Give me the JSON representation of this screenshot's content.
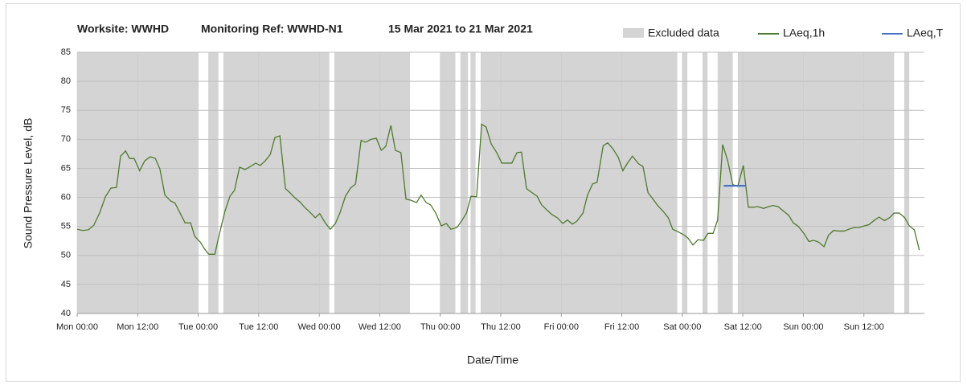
{
  "chart_data": {
    "type": "line",
    "title_parts": [
      "Worksite: WWHD",
      "Monitoring Ref: WWHD-N1",
      "15 Mar 2021 to 21 Mar 2021"
    ],
    "xlabel": "Date/Time",
    "ylabel": "Sound Pressure Level, dB",
    "xlim": [
      0,
      168
    ],
    "ylim": [
      40,
      85
    ],
    "yticks": [
      40,
      45,
      50,
      55,
      60,
      65,
      70,
      75,
      80,
      85
    ],
    "xticks": [
      {
        "value": 0,
        "label": "Mon 00:00"
      },
      {
        "value": 12,
        "label": "Mon 12:00"
      },
      {
        "value": 24,
        "label": "Tue 00:00"
      },
      {
        "value": 36,
        "label": "Tue 12:00"
      },
      {
        "value": 48,
        "label": "Wed 00:00"
      },
      {
        "value": 60,
        "label": "Wed 12:00"
      },
      {
        "value": 72,
        "label": "Thu 00:00"
      },
      {
        "value": 84,
        "label": "Thu 12:00"
      },
      {
        "value": 96,
        "label": "Fri 00:00"
      },
      {
        "value": 108,
        "label": "Fri 12:00"
      },
      {
        "value": 120,
        "label": "Sat 00:00"
      },
      {
        "value": 132,
        "label": "Sat 12:00"
      },
      {
        "value": 144,
        "label": "Sun 00:00"
      },
      {
        "value": 156,
        "label": "Sun 12:00"
      }
    ],
    "grid": true,
    "legend": "top-right",
    "excluded": {
      "name": "Excluded data",
      "color": "#d4d4d4",
      "ranges": [
        [
          0,
          24
        ],
        [
          26,
          28
        ],
        [
          29,
          50
        ],
        [
          51,
          66
        ],
        [
          72,
          75
        ],
        [
          76,
          77.5
        ],
        [
          78,
          79
        ],
        [
          80,
          119
        ],
        [
          120,
          121
        ],
        [
          124,
          125
        ],
        [
          127,
          130
        ],
        [
          131,
          162
        ],
        [
          164,
          165
        ]
      ]
    },
    "series": [
      {
        "name": "LAeq,1h",
        "color": "#4e7a2e",
        "x": [
          0,
          1.1,
          2.2,
          3.3,
          4.5,
          5.6,
          6.7,
          7.8,
          8.6,
          9.6,
          10.4,
          11.3,
          12.4,
          13.4,
          14.5,
          15.5,
          16.4,
          17.4,
          18.5,
          19.4,
          20.4,
          21.4,
          22.5,
          23.3,
          24.4,
          25.2,
          26.1,
          27.3,
          28.2,
          29.3,
          30.3,
          31.2,
          32.2,
          33.3,
          34.3,
          35.4,
          36.3,
          37.3,
          38.3,
          39.2,
          40.2,
          41.3,
          42.2,
          43.2,
          44.2,
          45.1,
          46.2,
          47.2,
          48.1,
          49.2,
          50.2,
          51.2,
          52.1,
          53.2,
          54.2,
          55.2,
          56.3,
          57.2,
          58.3,
          59.3,
          60.3,
          61.2,
          62.2,
          63.1,
          64.2,
          65.2,
          66.2,
          67.3,
          68.2,
          69.2,
          70.1,
          71.1,
          72.2,
          73.2,
          74.1,
          75.3,
          76.2,
          77.2,
          78.1,
          79.2,
          80.2,
          81.1,
          82.1,
          83.2,
          84.2,
          85.1,
          86.2,
          87.2,
          88.1,
          89.1,
          90.2,
          91.2,
          92.1,
          93.3,
          94.2,
          95.2,
          96.3,
          97.2,
          98.2,
          99.1,
          100.3,
          101.2,
          102.2,
          103.1,
          104.3,
          105.2,
          106.2,
          107.3,
          108.2,
          109.2,
          110.1,
          111.3,
          112.2,
          113.2,
          114.1,
          115.1,
          116.2,
          117.2,
          118.1,
          119.1,
          120.2,
          121.1,
          122.1,
          123.1,
          124.2,
          125.1,
          126.1,
          127,
          128,
          129,
          130,
          131,
          132.1,
          133.1,
          134.1,
          135,
          136.1,
          137.1,
          138,
          139,
          140.1,
          141.1,
          142,
          143,
          144.1,
          145.1,
          146,
          147,
          148.1,
          149,
          150,
          151,
          152.1,
          153,
          154,
          155,
          156.1,
          157,
          158,
          159,
          160.1,
          161.1,
          162,
          163,
          164.1,
          165,
          166,
          167
        ],
        "values": [
          54.5,
          54.3,
          54.4,
          55.2,
          57.4,
          60.1,
          61.6,
          61.7,
          67.1,
          68,
          66.7,
          66.7,
          64.6,
          66.3,
          67,
          66.7,
          64.9,
          60.4,
          59.4,
          59,
          57.3,
          55.6,
          55.6,
          53.3,
          52.3,
          51.2,
          50.2,
          50.2,
          53.7,
          57.6,
          60.2,
          61.2,
          65.2,
          64.8,
          65.3,
          65.9,
          65.5,
          66.3,
          67.4,
          70.3,
          70.6,
          61.5,
          60.8,
          59.9,
          59.2,
          58.3,
          57.4,
          56.5,
          57.2,
          55.6,
          54.5,
          55.5,
          57.3,
          60.2,
          61.6,
          62.3,
          69.8,
          69.5,
          70,
          70.2,
          68.1,
          68.8,
          72.4,
          68.1,
          67.7,
          59.7,
          59.5,
          59.1,
          60.4,
          59.1,
          58.7,
          57.3,
          55.1,
          55.5,
          54.5,
          54.8,
          55.9,
          57.3,
          60.2,
          60.1,
          72.6,
          72.1,
          69.2,
          67.7,
          65.9,
          65.9,
          65.9,
          67.7,
          67.8,
          61.5,
          60.8,
          60.2,
          58.7,
          57.7,
          57,
          56.5,
          55.5,
          56.1,
          55.4,
          55.9,
          57.3,
          60.4,
          62.3,
          62.6,
          68.9,
          69.4,
          68.4,
          66.9,
          64.6,
          66,
          67.1,
          65.8,
          65.3,
          60.8,
          59.8,
          58.6,
          57.6,
          56.5,
          54.5,
          54.1,
          53.6,
          53,
          51.8,
          52.7,
          52.6,
          53.8,
          53.8,
          56.1,
          69.1,
          66.3,
          62.2,
          61.9,
          65.5,
          58.3,
          58.3,
          58.4,
          58.1,
          58.4,
          58.6,
          58.4,
          57.6,
          56.9,
          55.6,
          55,
          53.8,
          52.4,
          52.6,
          52.3,
          51.5,
          53.5,
          54.3,
          54.2,
          54.2,
          54.5,
          54.8,
          54.8,
          55.1,
          55.3,
          56,
          56.6,
          56,
          56.5,
          57.3,
          57.3,
          56.5,
          55.1,
          54.4,
          50.9
        ]
      },
      {
        "name": "LAeq,T",
        "color": "#4472c4",
        "x": [
          128.2,
          132.6
        ],
        "values": [
          62,
          62
        ]
      }
    ]
  }
}
